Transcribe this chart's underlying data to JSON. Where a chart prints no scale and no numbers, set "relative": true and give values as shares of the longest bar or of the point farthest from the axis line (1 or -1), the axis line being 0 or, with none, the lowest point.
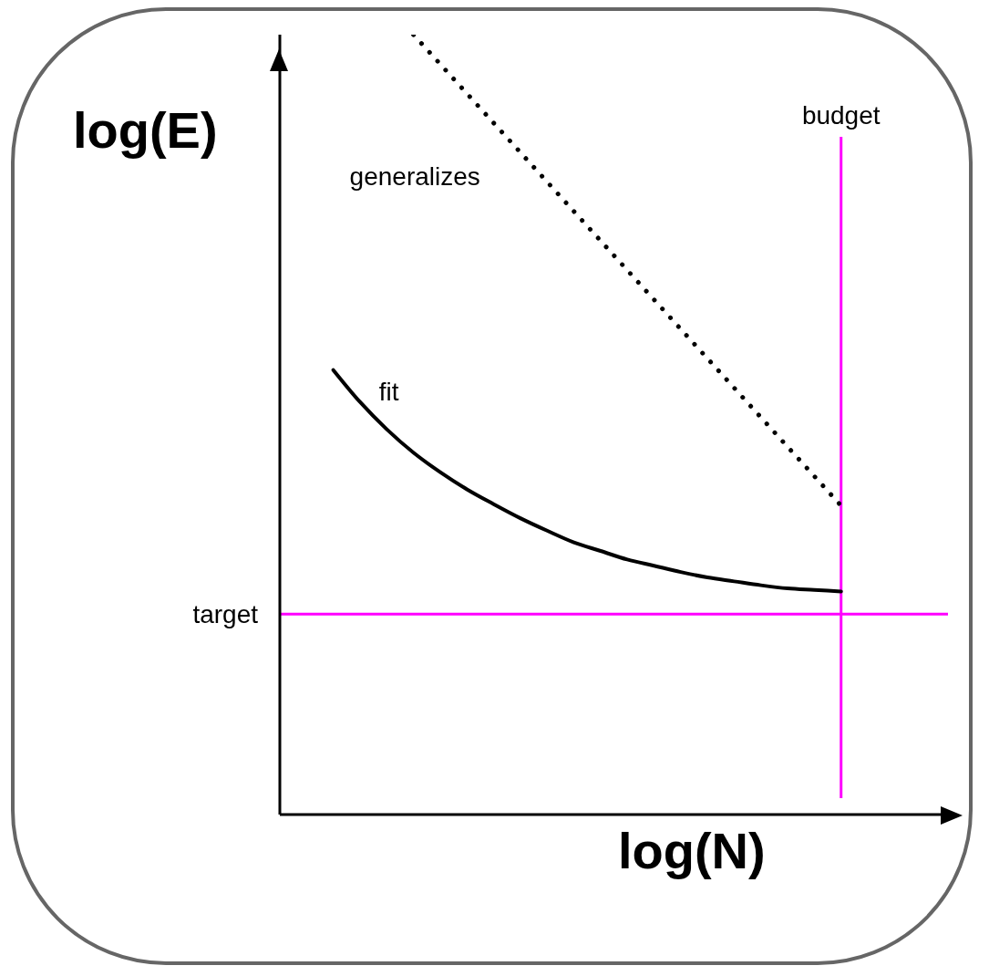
{
  "chart_data": {
    "type": "line",
    "xlabel": "log(N)",
    "ylabel": "log(E)",
    "relative": true,
    "legend": false,
    "grid": false,
    "marker": "none",
    "categories": [
      null,
      null,
      null,
      null,
      null,
      null,
      null,
      null,
      null,
      null,
      null,
      null,
      null,
      null,
      null,
      null,
      null,
      null,
      null,
      null,
      null,
      null,
      null,
      null,
      null,
      null
    ],
    "series": [
      {
        "name": "fit",
        "color": "#000000",
        "line_style": "solid",
        "values": [
          null,
          null,
          0.57,
          0.529,
          0.494,
          0.464,
          0.439,
          0.417,
          0.398,
          0.38,
          0.364,
          0.349,
          0.338,
          0.327,
          0.319,
          0.311,
          0.304,
          0.299,
          0.294,
          0.29,
          0.288,
          0.286,
          null,
          null,
          null,
          null
        ]
      },
      {
        "name": "generalizes",
        "color": "#000000",
        "line_style": "dotted",
        "values": [
          null,
          null,
          null,
          null,
          null,
          1.0,
          null,
          null,
          null,
          null,
          null,
          null,
          null,
          null,
          null,
          null,
          null,
          null,
          null,
          null,
          null,
          0.396,
          null,
          null,
          null,
          null
        ]
      }
    ],
    "ref_lines": [
      {
        "axis": "y",
        "value": 0.257,
        "label": "target",
        "color": "#ff00ff"
      },
      {
        "axis": "x",
        "label": "budget",
        "color": "#ff00ff"
      }
    ]
  }
}
